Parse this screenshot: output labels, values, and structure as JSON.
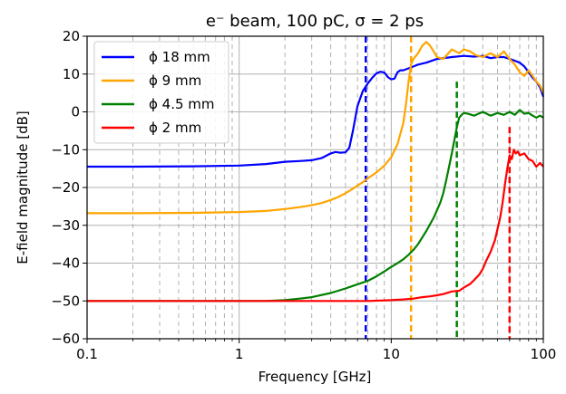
{
  "chart_data": {
    "type": "line",
    "title": "e⁻ beam, 100 pC, σ = 2 ps",
    "xlabel": "Frequency [GHz]",
    "ylabel": "E-field magnitude [dB]",
    "xscale": "log",
    "xlim": [
      0.1,
      100
    ],
    "ylim": [
      -60,
      20
    ],
    "x_ticks": [
      0.1,
      1,
      10,
      100
    ],
    "x_tick_labels": [
      "0.1",
      "1",
      "10",
      "100"
    ],
    "y_ticks": [
      -60,
      -50,
      -40,
      -30,
      -20,
      -10,
      0,
      10,
      20
    ],
    "y_tick_labels": [
      "−60",
      "−50",
      "−40",
      "−30",
      "−20",
      "−10",
      "0",
      "10",
      "20"
    ],
    "grid": "major y, major and minor x (dashed minor)",
    "legend_position": "upper-left",
    "series": [
      {
        "name": "ϕ 18 mm",
        "color": "#0000ff",
        "x": [
          0.1,
          0.2,
          0.5,
          1,
          1.5,
          2,
          2.5,
          3,
          3.5,
          4,
          4.3,
          4.6,
          5,
          5.3,
          5.6,
          6,
          6.5,
          7,
          7.5,
          8,
          8.5,
          9,
          9.5,
          10,
          10.5,
          11,
          11.5,
          12,
          13,
          14,
          15,
          17,
          20,
          25,
          30,
          35,
          40,
          45,
          50,
          55,
          60,
          65,
          70,
          75,
          80,
          85,
          90,
          95,
          100
        ],
        "y": [
          -14.5,
          -14.5,
          -14.4,
          -14.2,
          -13.8,
          -13.2,
          -13.0,
          -12.8,
          -12.2,
          -11.0,
          -10.6,
          -10.8,
          -10.7,
          -9.5,
          -5.0,
          1.5,
          5.5,
          7.5,
          9.0,
          10.2,
          10.6,
          10.4,
          9.2,
          8.6,
          8.8,
          10.5,
          11.0,
          11.0,
          11.5,
          12.0,
          12.5,
          13.0,
          14.0,
          14.5,
          14.8,
          14.6,
          14.8,
          14.2,
          14.5,
          14.5,
          14.0,
          13.5,
          13.0,
          12.0,
          10.5,
          9.0,
          8.0,
          6.5,
          4.0
        ]
      },
      {
        "name": "ϕ 9 mm",
        "color": "#ffa500",
        "x": [
          0.1,
          0.2,
          0.5,
          1,
          1.5,
          2,
          2.5,
          3,
          3.5,
          4,
          4.5,
          5,
          5.5,
          6,
          6.5,
          7,
          8,
          9,
          10,
          11,
          12,
          12.5,
          13,
          13.5,
          14,
          15,
          16,
          17,
          18,
          19,
          20,
          22,
          25,
          28,
          30,
          33,
          36,
          40,
          45,
          50,
          55,
          60,
          65,
          70,
          75,
          80,
          85,
          90,
          95,
          100
        ],
        "y": [
          -26.8,
          -26.8,
          -26.7,
          -26.5,
          -26.2,
          -25.7,
          -25.2,
          -24.7,
          -24.1,
          -23.3,
          -22.5,
          -21.5,
          -20.5,
          -19.5,
          -18.6,
          -17.6,
          -16.0,
          -14.2,
          -12.0,
          -8.5,
          -3.0,
          2.0,
          8.0,
          12.5,
          14.0,
          15.5,
          17.5,
          18.5,
          17.5,
          16.0,
          14.5,
          14.0,
          16.5,
          15.5,
          16.5,
          16.0,
          15.0,
          14.5,
          15.5,
          14.5,
          16.0,
          14.0,
          12.5,
          10.5,
          9.5,
          11.0,
          9.5,
          8.0,
          7.0,
          5.0
        ]
      },
      {
        "name": "ϕ 4.5 mm",
        "color": "#008000",
        "x": [
          0.1,
          0.5,
          1,
          1.5,
          2,
          2.5,
          3,
          4,
          5,
          6,
          7,
          8,
          9,
          10,
          11,
          12,
          13,
          14,
          15,
          17,
          19,
          20,
          21,
          22,
          23,
          24,
          25,
          26,
          27,
          28,
          29,
          30,
          32,
          35,
          40,
          45,
          50,
          55,
          60,
          65,
          70,
          75,
          80,
          85,
          90,
          95,
          100
        ],
        "y": [
          -50.0,
          -50.0,
          -50.0,
          -50.0,
          -49.8,
          -49.4,
          -49.0,
          -47.9,
          -46.7,
          -45.6,
          -44.7,
          -43.5,
          -42.2,
          -41.0,
          -40.0,
          -39.0,
          -37.8,
          -36.5,
          -35.0,
          -31.5,
          -28.0,
          -26.0,
          -24.0,
          -21.5,
          -18.0,
          -14.5,
          -11.0,
          -7.5,
          -4.0,
          -1.5,
          -0.8,
          -0.3,
          -0.5,
          -1.0,
          0.0,
          -1.0,
          -0.3,
          -0.8,
          0.0,
          -0.8,
          0.5,
          -0.5,
          -0.3,
          -1.0,
          -1.5,
          -1.0,
          -1.5
        ]
      },
      {
        "name": "ϕ 2 mm",
        "color": "#ff0000",
        "x": [
          0.1,
          0.5,
          1,
          2,
          3,
          5,
          7,
          10,
          12,
          14,
          16,
          18,
          20,
          22,
          25,
          28,
          30,
          33,
          35,
          38,
          40,
          42,
          45,
          48,
          50,
          52,
          54,
          56,
          58,
          60,
          62,
          64,
          66,
          68,
          70,
          75,
          80,
          85,
          90,
          95,
          100
        ],
        "y": [
          -50.0,
          -50.0,
          -50.0,
          -50.0,
          -50.0,
          -50.0,
          -50.0,
          -49.8,
          -49.6,
          -49.4,
          -49.0,
          -48.8,
          -48.5,
          -48.2,
          -47.5,
          -47.3,
          -46.5,
          -45.5,
          -44.5,
          -43.0,
          -41.5,
          -39.5,
          -37.0,
          -34.0,
          -31.0,
          -28.0,
          -24.0,
          -19.0,
          -15.0,
          -11.5,
          -12.5,
          -10.0,
          -11.0,
          -10.5,
          -11.5,
          -11.0,
          -12.5,
          -13.0,
          -14.5,
          -13.5,
          -14.5
        ]
      }
    ],
    "markers": [
      {
        "series": "ϕ 18 mm",
        "x": 6.8,
        "color": "#0000ff",
        "y_top": 20,
        "y_bottom": -60
      },
      {
        "series": "ϕ 9 mm",
        "x": 13.5,
        "color": "#ffa500",
        "y_top": 20,
        "y_bottom": -60
      },
      {
        "series": "ϕ 4.5 mm",
        "x": 27,
        "color": "#008000",
        "y_top": 8,
        "y_bottom": -60
      },
      {
        "series": "ϕ 2 mm",
        "x": 60,
        "color": "#ff0000",
        "y_top": -4,
        "y_bottom": -60
      }
    ]
  }
}
